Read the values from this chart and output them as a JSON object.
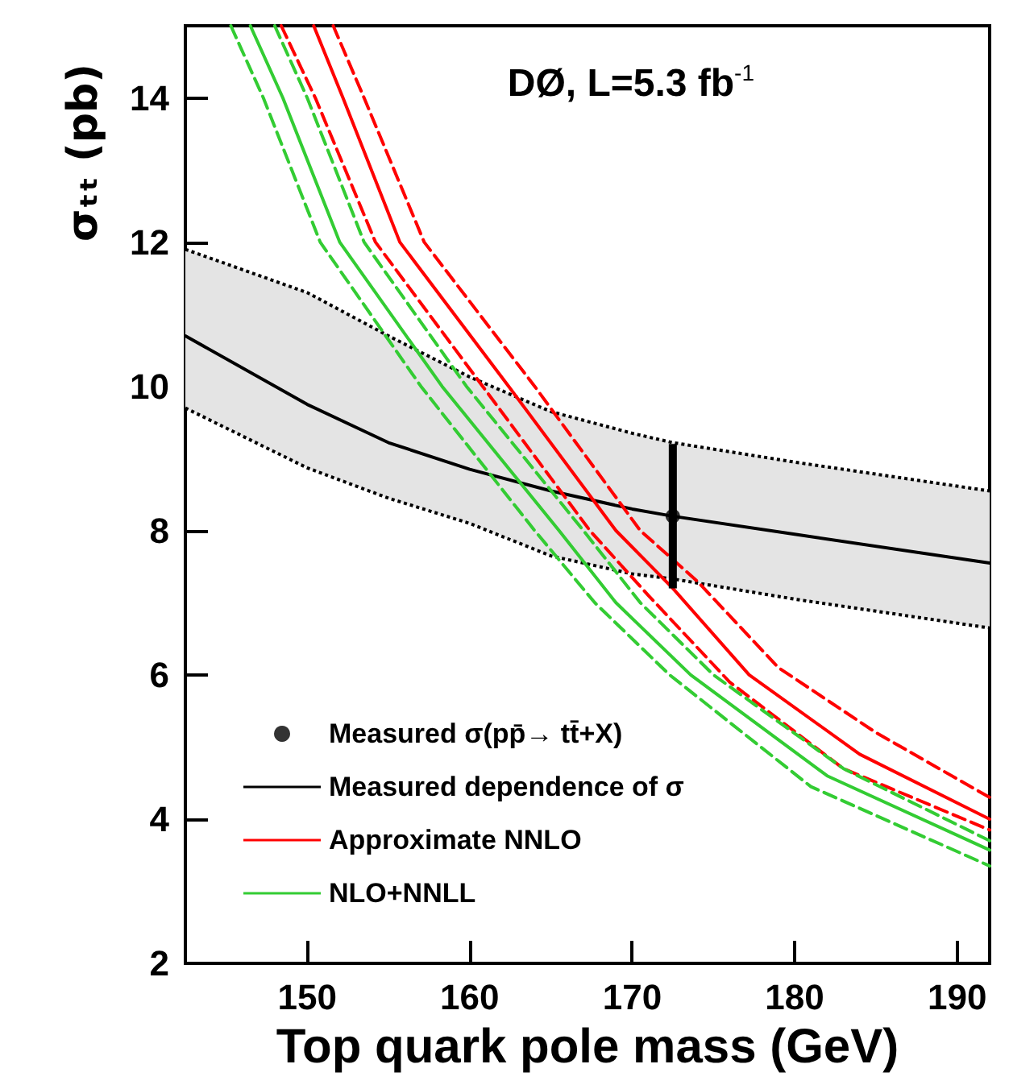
{
  "chart_data": {
    "type": "line",
    "xlabel": "Top quark pole mass (GeV)",
    "ylabel": "σₜₜ (pb)",
    "annotations": [
      "DØ, L=5.3 fb$^{-1}$"
    ],
    "xlim": [
      142.5,
      192
    ],
    "ylim": [
      2,
      15
    ],
    "xticks": [
      150,
      160,
      170,
      180,
      190
    ],
    "yticks": [
      2,
      4,
      6,
      8,
      10,
      12,
      14
    ],
    "grid": false,
    "legend": "bottom left",
    "marker": "none",
    "series": [
      {
        "name": "Measured σ(pp̄→ tt̄+X)",
        "type": "scatter",
        "marker": "circle",
        "color": "#000000",
        "x": [
          172.5
        ],
        "values": [
          8.2
        ],
        "errors": [
          1.0
        ]
      },
      {
        "name": "Measured dependence of σ",
        "color": "#000000",
        "x": [
          142.5,
          150,
          155,
          160,
          165,
          170,
          172.5,
          180,
          192
        ],
        "values": [
          10.7,
          9.75,
          9.22,
          8.85,
          8.55,
          8.3,
          8.2,
          7.95,
          7.55
        ],
        "lower": [
          9.7,
          8.87,
          8.45,
          8.1,
          7.65,
          7.4,
          7.33,
          7.05,
          6.65
        ],
        "upper": [
          11.9,
          11.3,
          10.7,
          10.13,
          9.65,
          9.35,
          9.22,
          8.95,
          8.55
        ]
      },
      {
        "color": "#000000",
        "line_style": "dotted",
        "x": [
          142.5,
          150,
          155,
          160,
          165,
          170,
          172.5,
          180,
          192
        ],
        "values": [
          9.7,
          8.87,
          8.45,
          8.1,
          7.65,
          7.4,
          7.33,
          7.05,
          6.65
        ]
      },
      {
        "color": "#000000",
        "line_style": "dotted",
        "x": [
          142.5,
          150,
          155,
          160,
          165,
          170,
          172.5,
          180,
          192
        ],
        "values": [
          11.9,
          11.3,
          10.7,
          10.13,
          9.65,
          9.35,
          9.22,
          8.95,
          8.55
        ]
      },
      {
        "name": "Approximate NNLO",
        "color": "#ff0000",
        "x": [
          150.4,
          152.2,
          155.7,
          162.4,
          169,
          172.5,
          177.2,
          184,
          192
        ],
        "values": [
          15,
          14,
          12,
          10,
          8,
          7.2,
          6,
          4.9,
          4.0
        ]
      },
      {
        "color": "#ff0000",
        "line_style": "dashed",
        "x": [
          151.6,
          153.5,
          157.2,
          164,
          170.5,
          174,
          179,
          185,
          192
        ],
        "values": [
          15,
          14,
          12,
          10,
          8,
          7.3,
          6.1,
          5.2,
          4.3
        ]
      },
      {
        "color": "#ff0000",
        "line_style": "dashed",
        "x": [
          148.4,
          150.5,
          154.2,
          160.8,
          167.4,
          171,
          176,
          183,
          192
        ],
        "values": [
          15,
          14,
          12,
          10,
          8,
          7.1,
          5.9,
          4.7,
          3.85
        ]
      },
      {
        "name": "NLO+NNLL",
        "color": "#33cc33",
        "x": [
          146.5,
          148.5,
          152,
          158.3,
          165.5,
          169,
          173.6,
          182,
          192
        ],
        "values": [
          15,
          14,
          12,
          10,
          8,
          7.0,
          6,
          4.6,
          3.57
        ]
      },
      {
        "color": "#33cc33",
        "line_style": "dashed",
        "x": [
          148,
          150,
          153.5,
          159.8,
          167,
          170.5,
          175,
          183,
          192
        ],
        "values": [
          15,
          14,
          12,
          10,
          8,
          7.0,
          6.0,
          4.7,
          3.7
        ]
      },
      {
        "color": "#33cc33",
        "line_style": "dashed",
        "x": [
          145.3,
          147.3,
          150.8,
          157,
          164,
          167.7,
          172.3,
          181,
          192
        ],
        "values": [
          15,
          14,
          12,
          10,
          8,
          7.0,
          6,
          4.45,
          3.35
        ]
      }
    ]
  }
}
